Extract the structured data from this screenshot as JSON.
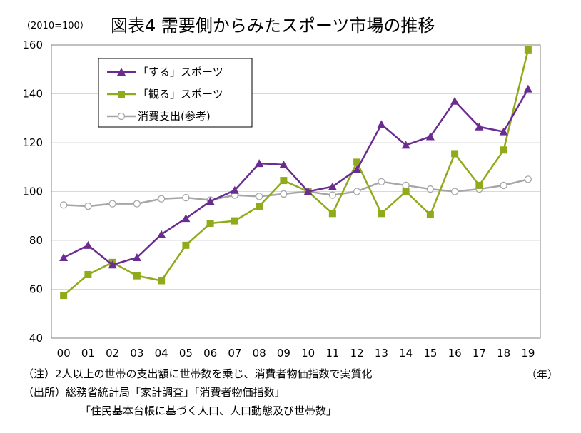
{
  "chart_data": {
    "type": "line",
    "title": "図表4 需要側からみたスポーツ市場の推移",
    "unit_label": "（2010=100）",
    "x_unit": "（年）",
    "ylim": [
      40,
      160
    ],
    "y_ticks": [
      40,
      60,
      80,
      100,
      120,
      140,
      160
    ],
    "grid": true,
    "legend_position": "top-left",
    "categories": [
      "00",
      "01",
      "02",
      "03",
      "04",
      "05",
      "06",
      "07",
      "08",
      "09",
      "10",
      "11",
      "12",
      "13",
      "14",
      "15",
      "16",
      "17",
      "18",
      "19"
    ],
    "series": [
      {
        "name": "「する」スポーツ",
        "marker": "triangle",
        "color": "#6B2C91",
        "values": [
          73,
          78,
          70,
          73,
          82.5,
          89,
          96,
          100.5,
          111.5,
          111,
          100,
          102,
          109,
          127.5,
          119,
          122.5,
          137,
          126.5,
          124.5,
          142
        ]
      },
      {
        "name": "「観る」スポーツ",
        "marker": "square",
        "color": "#8FAA1A",
        "values": [
          57.5,
          66,
          71,
          65.5,
          63.5,
          78,
          87,
          88,
          94,
          104.5,
          100,
          91,
          112,
          91,
          100,
          90.5,
          115.5,
          102.5,
          117,
          158
        ]
      },
      {
        "name": "消費支出(参考)",
        "marker": "circle",
        "color": "#A6A6A6",
        "values": [
          94.5,
          94,
          95,
          95,
          97,
          97.5,
          96.5,
          98.5,
          98,
          99,
          100,
          98.5,
          100,
          104,
          102.5,
          101,
          100,
          101,
          102.5,
          105
        ]
      }
    ]
  },
  "notes": [
    "（注）2人以上の世帯の支出額に世帯数を乗じ、消費者物価指数で実質化",
    "（出所）総務省統計局「家計調査」「消費者物価指数」",
    "「住民基本台帳に基づく人口、人口動態及び世帯数」"
  ]
}
